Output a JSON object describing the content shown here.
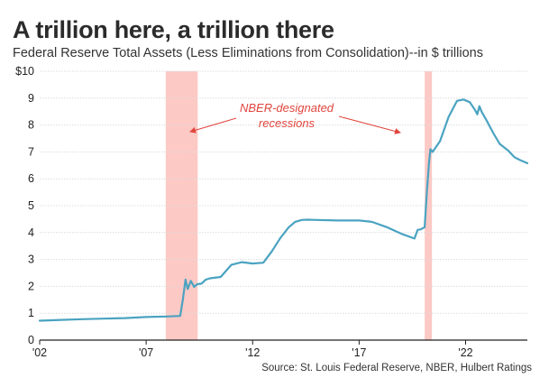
{
  "chart_data": {
    "type": "line",
    "title": "A trillion here, a trillion there",
    "subtitle": "Federal Reserve Total Assets (Less Eliminations from Consolidation)--in $ trillions",
    "xlabel": "",
    "ylabel": "",
    "xlim": [
      2002,
      2024.9
    ],
    "ylim": [
      0,
      10
    ],
    "y_ticks": [
      0,
      1,
      2,
      3,
      4,
      5,
      6,
      7,
      8,
      9,
      10
    ],
    "y_tick_labels": [
      "0",
      "1",
      "2",
      "3",
      "4",
      "5",
      "6",
      "7",
      "8",
      "9",
      "$10"
    ],
    "x_ticks": [
      2002,
      2007,
      2012,
      2017,
      2022
    ],
    "x_tick_labels": [
      "'02",
      "'07",
      "'12",
      "'17",
      "'22"
    ],
    "grid": "horizontal",
    "line_color": "#4aa3c1",
    "recession_color": "#fcc9c5",
    "annotation_color": "#e0453e",
    "recessions": [
      {
        "start": 2007.92,
        "end": 2009.42
      },
      {
        "start": 2020.08,
        "end": 2020.42
      }
    ],
    "annotation": {
      "line1": "NBER-designated",
      "line2": "recessions"
    },
    "source": "Source: St. Louis Federal Reserve, NBER, Hulbert Ratings",
    "series": [
      {
        "name": "Federal Reserve Total Assets",
        "x": [
          2002.0,
          2003.0,
          2004.0,
          2005.0,
          2006.0,
          2007.0,
          2008.0,
          2008.6,
          2008.72,
          2008.85,
          2008.95,
          2009.1,
          2009.25,
          2009.4,
          2009.6,
          2009.8,
          2010.0,
          2010.5,
          2011.0,
          2011.5,
          2012.0,
          2012.5,
          2012.9,
          2013.3,
          2013.7,
          2014.0,
          2014.3,
          2014.6,
          2015.0,
          2016.0,
          2017.0,
          2017.6,
          2018.3,
          2019.0,
          2019.6,
          2019.75,
          2019.9,
          2020.08,
          2020.18,
          2020.28,
          2020.35,
          2020.45,
          2020.8,
          2021.2,
          2021.6,
          2021.9,
          2022.2,
          2022.45,
          2022.55,
          2022.65,
          2022.75,
          2023.0,
          2023.3,
          2023.6,
          2024.0,
          2024.3,
          2024.6,
          2024.9
        ],
        "values": [
          0.72,
          0.75,
          0.78,
          0.8,
          0.82,
          0.86,
          0.88,
          0.9,
          1.5,
          2.25,
          1.9,
          2.2,
          1.98,
          2.08,
          2.1,
          2.25,
          2.3,
          2.35,
          2.8,
          2.9,
          2.85,
          2.88,
          3.3,
          3.8,
          4.2,
          4.4,
          4.47,
          4.48,
          4.47,
          4.45,
          4.45,
          4.4,
          4.2,
          3.95,
          3.78,
          4.1,
          4.12,
          4.2,
          5.5,
          6.6,
          7.1,
          7.0,
          7.4,
          8.3,
          8.9,
          8.95,
          8.85,
          8.55,
          8.4,
          8.7,
          8.5,
          8.15,
          7.7,
          7.3,
          7.05,
          6.8,
          6.68,
          6.58
        ]
      }
    ]
  }
}
